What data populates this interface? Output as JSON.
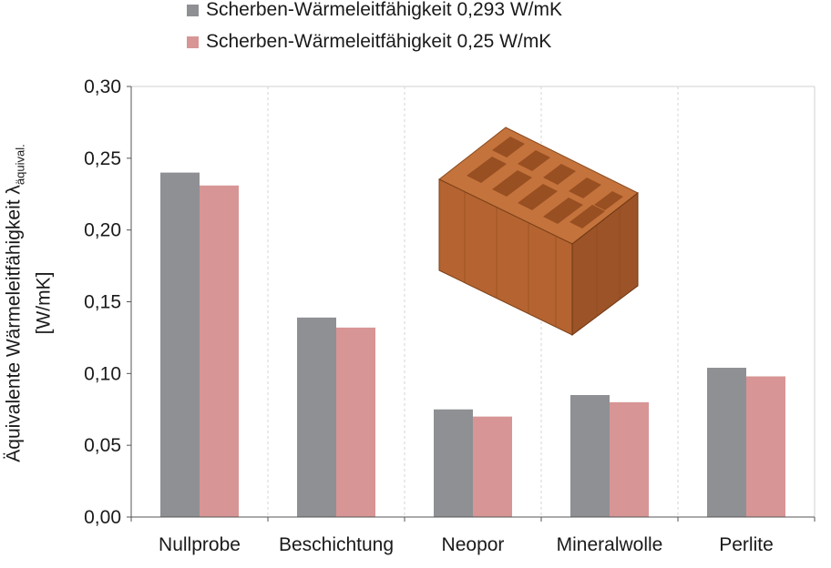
{
  "chart_data": {
    "type": "bar",
    "categories": [
      "Nullprobe",
      "Beschichtung",
      "Neopor",
      "Mineralwolle",
      "Perlite"
    ],
    "series": [
      {
        "name": "Scherben-Wärmeleitfähigkeit 0,293 W/mK",
        "color": "#8e9093",
        "values": [
          0.24,
          0.139,
          0.075,
          0.085,
          0.104
        ]
      },
      {
        "name": "Scherben-Wärmeleitfähigkeit 0,25 W/mK",
        "color": "#d89595",
        "values": [
          0.231,
          0.132,
          0.07,
          0.08,
          0.098
        ]
      }
    ],
    "ylabel_line1": "Äquivalente Wärmeleitfähigkeit λ",
    "ylabel_sub": "äquival.",
    "ylabel_line2": "[W/mK]",
    "ylim": [
      0,
      0.3
    ],
    "yticks": [
      "0,00",
      "0,05",
      "0,10",
      "0,15",
      "0,20",
      "0,25",
      "0,30"
    ],
    "grid": "vertical dashed",
    "legend_position": "top",
    "inset_image": "brick-icon"
  }
}
